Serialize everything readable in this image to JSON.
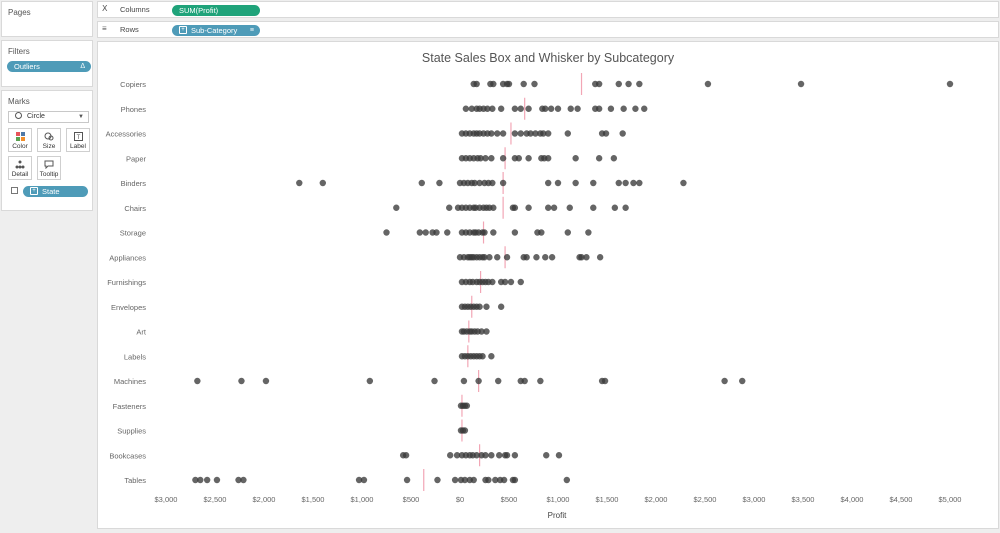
{
  "panels": {
    "pages_label": "Pages",
    "filters_label": "Filters",
    "filter_pill": "Outliers",
    "filter_pill_icon": "delta-icon",
    "marks_label": "Marks",
    "mark_type": "Circle",
    "mark_buttons": [
      {
        "label": "Color",
        "icon": "color-icon"
      },
      {
        "label": "Size",
        "icon": "size-icon"
      },
      {
        "label": "Label",
        "icon": "label-icon"
      },
      {
        "label": "Detail",
        "icon": "detail-icon"
      },
      {
        "label": "Tooltip",
        "icon": "tooltip-icon"
      }
    ],
    "detail_pill": "State"
  },
  "shelves": {
    "columns_label": "Columns",
    "columns_pill": "SUM(Profit)",
    "rows_label": "Rows",
    "rows_pill": "Sub-Category"
  },
  "colors": {
    "dot": "#3a3a3a",
    "median_line": "#f2a6b5",
    "pill_blue": "#4e9bb8",
    "pill_green": "#1fa37a"
  },
  "chart_data": {
    "type": "scatter",
    "title": "State Sales Box and Whisker by Subcategory",
    "xlabel": "Profit",
    "xlim": [
      -3000,
      5000
    ],
    "xticks": [
      -3000,
      -2500,
      -2000,
      -1500,
      -1000,
      -500,
      0,
      500,
      1000,
      1500,
      2000,
      2500,
      3000,
      3500,
      4000,
      4500,
      5000
    ],
    "xtick_labels": [
      "$3,000",
      "$2,500",
      "$2,000",
      "$1,500",
      "$1,000",
      "$500",
      "$0",
      "$500",
      "$1,000",
      "$1,500",
      "$2,000",
      "$2,500",
      "$3,000",
      "$3,500",
      "$4,000",
      "$4,500",
      "$5,000"
    ],
    "grid": false,
    "categories": [
      "Copiers",
      "Phones",
      "Accessories",
      "Paper",
      "Binders",
      "Chairs",
      "Storage",
      "Appliances",
      "Furnishings",
      "Envelopes",
      "Art",
      "Labels",
      "Machines",
      "Fasteners",
      "Supplies",
      "Bookcases",
      "Tables"
    ],
    "medians": [
      1240,
      660,
      520,
      460,
      440,
      440,
      240,
      460,
      210,
      120,
      90,
      80,
      190,
      20,
      20,
      200,
      -370
    ],
    "points": [
      [
        140,
        170,
        310,
        340,
        440,
        480,
        500,
        650,
        760,
        1380,
        1420,
        1620,
        1720,
        1830,
        2530,
        3480,
        5000
      ],
      [
        60,
        120,
        170,
        200,
        240,
        280,
        330,
        420,
        560,
        620,
        700,
        840,
        870,
        930,
        1000,
        1130,
        1200,
        1380,
        1420,
        1540,
        1670,
        1790,
        1880
      ],
      [
        20,
        60,
        100,
        140,
        170,
        200,
        240,
        280,
        320,
        380,
        440,
        560,
        620,
        680,
        720,
        770,
        820,
        850,
        900,
        1100,
        1450,
        1490,
        1660
      ],
      [
        20,
        60,
        100,
        140,
        180,
        210,
        260,
        320,
        440,
        560,
        600,
        700,
        830,
        860,
        900,
        1180,
        1420,
        1570
      ],
      [
        -1640,
        -1400,
        -390,
        -210,
        0,
        40,
        80,
        120,
        150,
        200,
        250,
        290,
        330,
        440,
        900,
        1000,
        1180,
        1360,
        1620,
        1690,
        1770,
        1830,
        2280
      ],
      [
        -650,
        -110,
        -20,
        20,
        60,
        100,
        140,
        160,
        200,
        240,
        270,
        300,
        340,
        540,
        560,
        700,
        900,
        960,
        1120,
        1360,
        1580,
        1690
      ],
      [
        -750,
        -410,
        -350,
        -280,
        -240,
        -130,
        20,
        60,
        100,
        140,
        160,
        190,
        230,
        250,
        340,
        560,
        790,
        830,
        1100,
        1310
      ],
      [
        0,
        40,
        80,
        100,
        120,
        140,
        170,
        200,
        230,
        250,
        300,
        380,
        480,
        650,
        680,
        780,
        870,
        940,
        1220,
        1240,
        1290,
        1430
      ],
      [
        20,
        60,
        100,
        130,
        170,
        200,
        230,
        260,
        290,
        330,
        420,
        460,
        520,
        620
      ],
      [
        20,
        50,
        80,
        110,
        140,
        170,
        200,
        270,
        420
      ],
      [
        20,
        40,
        70,
        100,
        120,
        150,
        180,
        220,
        270
      ],
      [
        20,
        50,
        80,
        110,
        140,
        170,
        200,
        230,
        320
      ],
      [
        -2680,
        -2230,
        -1980,
        -920,
        -260,
        40,
        190,
        390,
        620,
        660,
        820,
        1450,
        1480,
        2700,
        2880
      ],
      [
        10,
        30,
        50,
        70
      ],
      [
        10,
        30,
        50
      ],
      [
        -580,
        -550,
        -100,
        -30,
        20,
        60,
        100,
        130,
        170,
        220,
        260,
        320,
        400,
        460,
        480,
        560,
        880,
        1010
      ],
      [
        -2700,
        -2650,
        -2580,
        -2480,
        -2260,
        -2210,
        -1030,
        -980,
        -540,
        -230,
        -50,
        10,
        50,
        100,
        140,
        260,
        290,
        360,
        410,
        450,
        540,
        560,
        1090
      ]
    ]
  }
}
